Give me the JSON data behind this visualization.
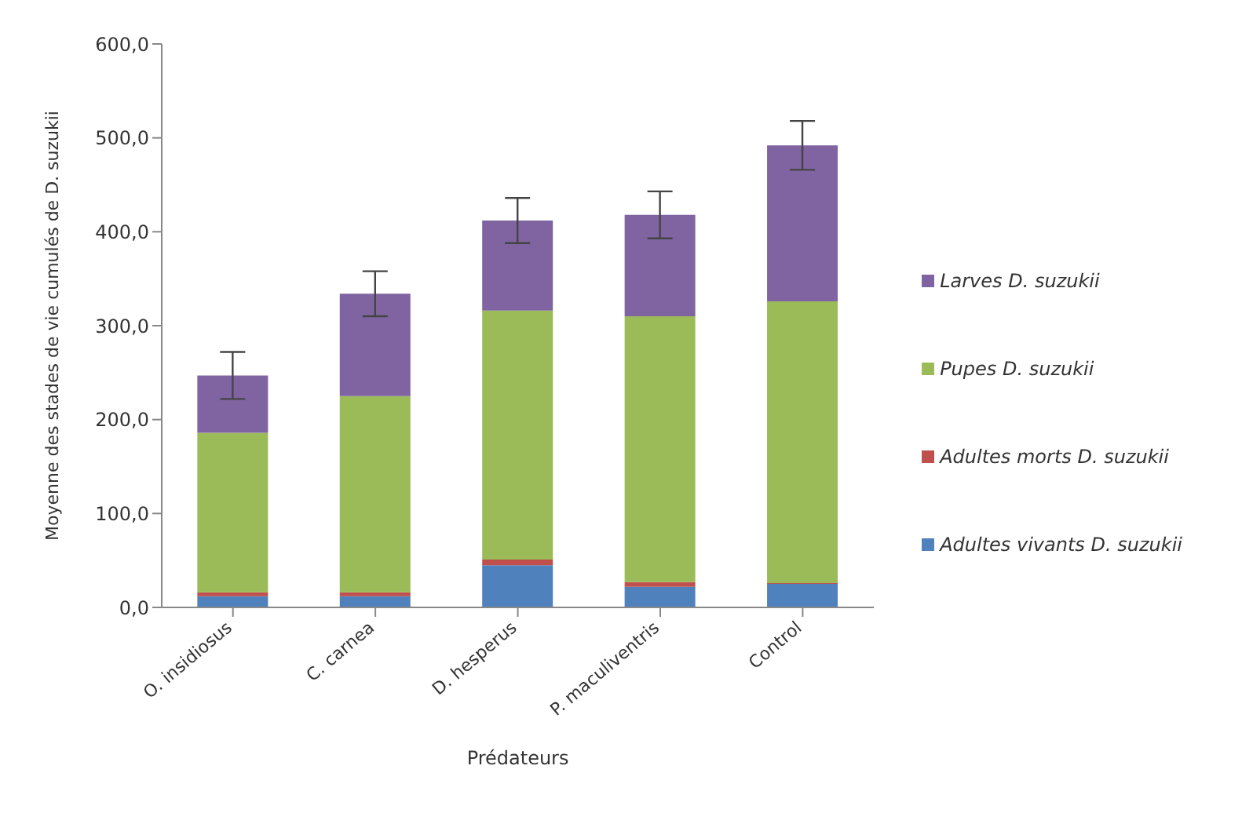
{
  "chart_data": {
    "type": "bar",
    "stacked": true,
    "xlabel": "Prédateurs",
    "ylabel": "Moyenne des stades de vie cumulés de D. suzukii",
    "categories": [
      "O. insidiosus",
      "C. carnea",
      "D. hesperus",
      "P. maculiventris",
      "Control"
    ],
    "series": [
      {
        "name": "Adultes vivants D. suzukii",
        "color": "#4f81bd",
        "values": [
          12,
          12,
          45,
          22,
          25
        ]
      },
      {
        "name": "Adultes morts D. suzukii",
        "color": "#c0504d",
        "values": [
          4,
          4,
          6,
          5,
          1
        ]
      },
      {
        "name": "Pupes D. suzukii",
        "color": "#9bbb59",
        "values": [
          170,
          209,
          265,
          283,
          300
        ]
      },
      {
        "name": "Larves D. suzukii",
        "color": "#8064a2",
        "values": [
          61,
          109,
          96,
          108,
          166
        ],
        "errors": [
          25,
          24,
          24,
          25,
          26
        ]
      }
    ],
    "ylim": [
      0,
      600
    ],
    "yticks": [
      {
        "value": 0,
        "label": "0,0"
      },
      {
        "value": 100,
        "label": "100,0"
      },
      {
        "value": 200,
        "label": "200,0"
      },
      {
        "value": 300,
        "label": "300,0"
      },
      {
        "value": 400,
        "label": "400,0"
      },
      {
        "value": 500,
        "label": "500,0"
      },
      {
        "value": 600,
        "label": "600,0"
      }
    ],
    "grid": false,
    "legend": "right"
  }
}
